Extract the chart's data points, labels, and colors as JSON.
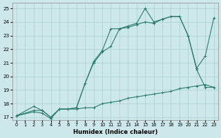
{
  "xlabel": "Humidex (Indice chaleur)",
  "bg_color": "#cce8ea",
  "grid_color": "#aacdd0",
  "line_color": "#2a7a6a",
  "xlim": [
    -0.5,
    23.5
  ],
  "ylim": [
    16.8,
    25.4
  ],
  "xticks": [
    0,
    1,
    2,
    3,
    4,
    5,
    6,
    7,
    8,
    9,
    10,
    11,
    12,
    13,
    14,
    15,
    16,
    17,
    18,
    19,
    20,
    21,
    22,
    23
  ],
  "yticks": [
    17,
    18,
    19,
    20,
    21,
    22,
    23,
    24,
    25
  ],
  "line1_x": [
    0,
    2,
    3,
    4,
    5,
    6,
    7,
    8,
    9,
    10,
    11,
    12,
    13,
    14,
    15,
    16,
    17,
    18,
    19,
    20,
    21,
    22,
    23
  ],
  "line1_y": [
    17.1,
    17.8,
    17.5,
    17.0,
    17.6,
    17.6,
    17.6,
    17.7,
    17.7,
    18.0,
    18.1,
    18.2,
    18.4,
    18.5,
    18.6,
    18.7,
    18.8,
    18.9,
    19.1,
    19.2,
    19.3,
    19.4,
    19.2
  ],
  "line2_x": [
    0,
    2,
    3,
    4,
    5,
    6,
    7,
    8,
    9,
    10,
    11,
    12,
    13,
    14,
    15,
    16,
    17,
    18,
    19,
    20,
    21,
    22,
    23
  ],
  "line2_y": [
    17.1,
    17.4,
    17.3,
    16.9,
    17.6,
    17.6,
    17.7,
    19.5,
    21.0,
    21.8,
    22.2,
    23.5,
    23.6,
    23.8,
    24.0,
    23.9,
    24.2,
    24.4,
    24.4,
    23.0,
    20.6,
    21.5,
    24.3
  ],
  "line3_x": [
    0,
    2,
    3,
    4,
    5,
    6,
    7,
    8,
    9,
    10,
    11,
    12,
    13,
    14,
    15,
    16,
    17,
    18,
    19,
    20,
    21,
    22,
    23
  ],
  "line3_y": [
    17.1,
    17.5,
    17.5,
    17.0,
    17.6,
    17.6,
    17.7,
    19.5,
    21.1,
    21.9,
    23.5,
    23.5,
    23.7,
    23.9,
    25.0,
    24.0,
    24.2,
    24.4,
    24.4,
    23.0,
    20.5,
    19.2,
    19.2
  ]
}
